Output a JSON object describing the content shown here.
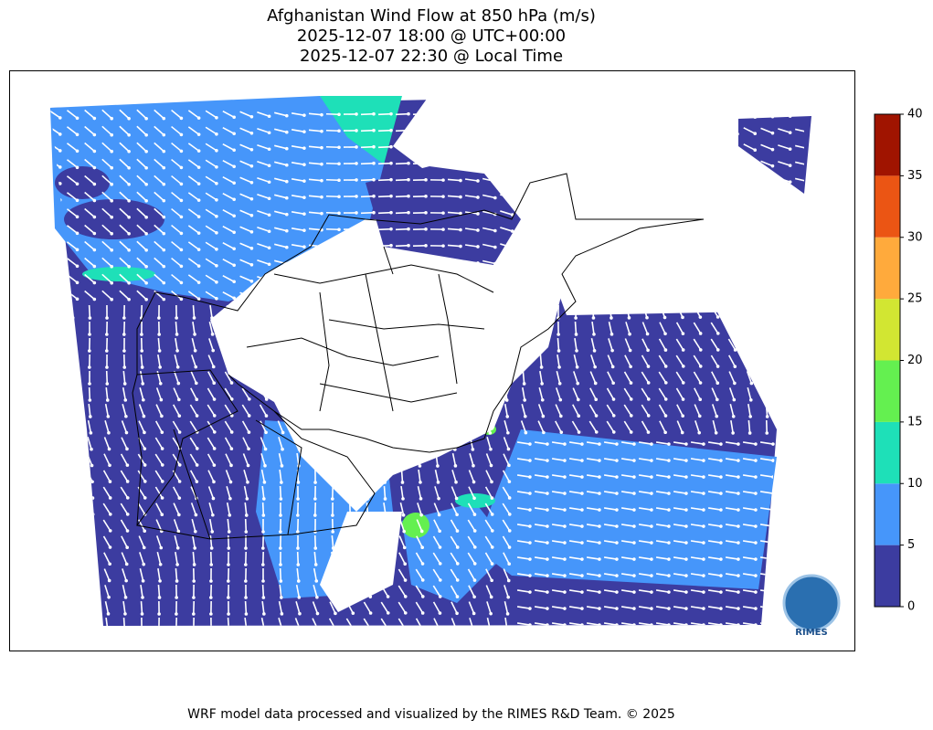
{
  "title_lines": [
    "Afghanistan Wind Flow at 850 hPa (m/s)",
    "2025-12-07 18:00 @ UTC+00:00",
    "2025-12-07 22:30 @ Local Time"
  ],
  "colorbar": {
    "ticks": [
      0,
      5,
      10,
      15,
      20,
      25,
      30,
      35,
      40
    ],
    "colors": [
      "#3c3ca0",
      "#4696fa",
      "#1ee0b8",
      "#64f050",
      "#d2e632",
      "#ffaa3c",
      "#eb5514",
      "#a01400"
    ]
  },
  "logo": "RIMES",
  "footer": "WRF model data processed and visualized by the RIMES R&D Team. © 2025"
}
